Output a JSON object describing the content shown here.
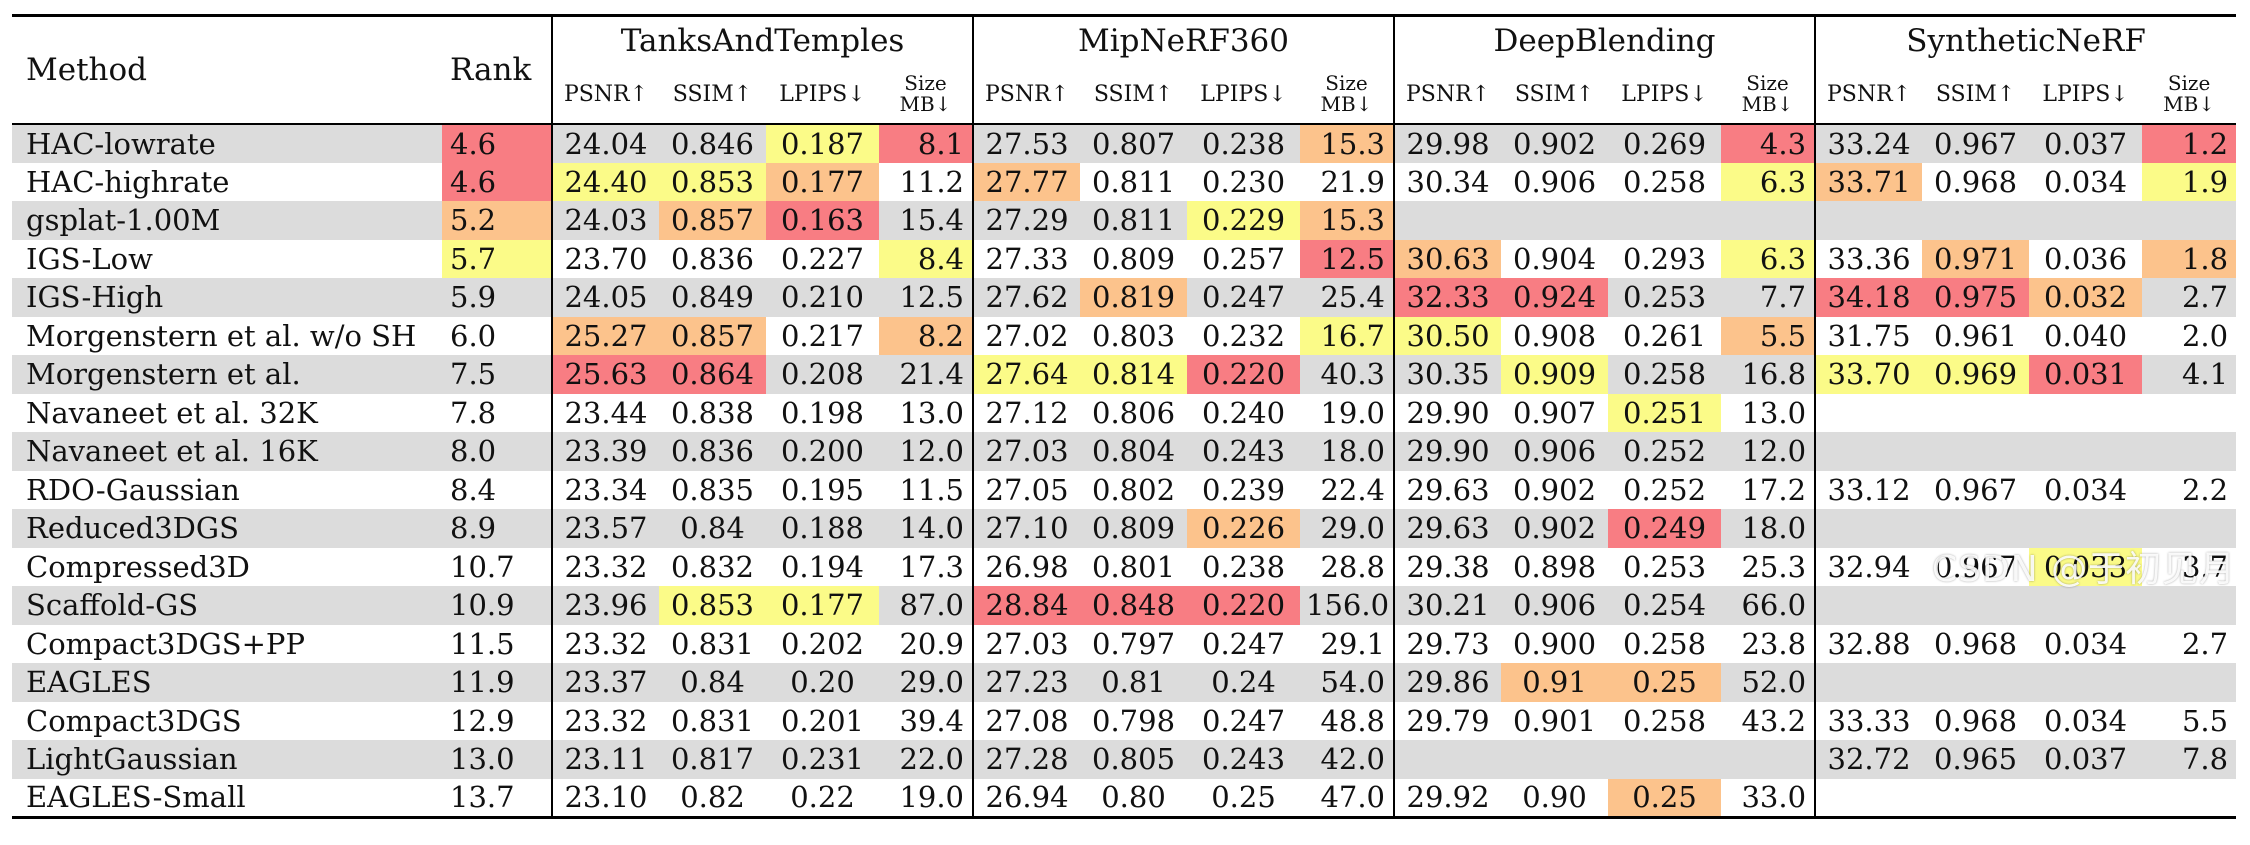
{
  "columns": {
    "method": "Method",
    "rank": "Rank",
    "groups": [
      "TanksAndTemples",
      "MipNeRF360",
      "DeepBlending",
      "SyntheticNeRF"
    ],
    "metrics": [
      "PSNR↑",
      "SSIM↑",
      "LPIPS↓"
    ],
    "size_top": "Size",
    "size_bottom": "MB↓"
  },
  "highlight_colors": {
    "red": "#f87d83",
    "orange": "#fcc38c",
    "yellow": "#fbfb88",
    "shaded": "#dcdcdc"
  },
  "rows": [
    {
      "method": "HAC-lowrate",
      "rank": "4.6",
      "rank_hl": "red",
      "shaded": true,
      "tt": [
        "24.04",
        "0.846",
        "0.187",
        "8.1"
      ],
      "tt_hl": [
        "",
        "",
        "yellow",
        "red"
      ],
      "mip": [
        "27.53",
        "0.807",
        "0.238",
        "15.3"
      ],
      "mip_hl": [
        "",
        "",
        "",
        "orange"
      ],
      "db": [
        "29.98",
        "0.902",
        "0.269",
        "4.3"
      ],
      "db_hl": [
        "",
        "",
        "",
        "red"
      ],
      "syn": [
        "33.24",
        "0.967",
        "0.037",
        "1.2"
      ],
      "syn_hl": [
        "",
        "",
        "",
        "red"
      ]
    },
    {
      "method": "HAC-highrate",
      "rank": "4.6",
      "rank_hl": "red",
      "shaded": false,
      "tt": [
        "24.40",
        "0.853",
        "0.177",
        "11.2"
      ],
      "tt_hl": [
        "yellow",
        "yellow",
        "orange",
        ""
      ],
      "mip": [
        "27.77",
        "0.811",
        "0.230",
        "21.9"
      ],
      "mip_hl": [
        "orange",
        "",
        "",
        ""
      ],
      "db": [
        "30.34",
        "0.906",
        "0.258",
        "6.3"
      ],
      "db_hl": [
        "",
        "",
        "",
        "yellow"
      ],
      "syn": [
        "33.71",
        "0.968",
        "0.034",
        "1.9"
      ],
      "syn_hl": [
        "orange",
        "",
        "",
        "yellow"
      ]
    },
    {
      "method": "gsplat-1.00M",
      "rank": "5.2",
      "rank_hl": "orange",
      "shaded": true,
      "tt": [
        "24.03",
        "0.857",
        "0.163",
        "15.4"
      ],
      "tt_hl": [
        "",
        "orange",
        "red",
        ""
      ],
      "mip": [
        "27.29",
        "0.811",
        "0.229",
        "15.3"
      ],
      "mip_hl": [
        "",
        "",
        "yellow",
        "orange"
      ],
      "db": [
        "",
        "",
        "",
        ""
      ],
      "db_hl": [
        "",
        "",
        "",
        ""
      ],
      "syn": [
        "",
        "",
        "",
        ""
      ],
      "syn_hl": [
        "",
        "",
        "",
        ""
      ]
    },
    {
      "method": "IGS-Low",
      "rank": "5.7",
      "rank_hl": "yellow",
      "shaded": false,
      "tt": [
        "23.70",
        "0.836",
        "0.227",
        "8.4"
      ],
      "tt_hl": [
        "",
        "",
        "",
        "yellow"
      ],
      "mip": [
        "27.33",
        "0.809",
        "0.257",
        "12.5"
      ],
      "mip_hl": [
        "",
        "",
        "",
        "red"
      ],
      "db": [
        "30.63",
        "0.904",
        "0.293",
        "6.3"
      ],
      "db_hl": [
        "orange",
        "",
        "",
        "yellow"
      ],
      "syn": [
        "33.36",
        "0.971",
        "0.036",
        "1.8"
      ],
      "syn_hl": [
        "",
        "orange",
        "",
        "orange"
      ]
    },
    {
      "method": "IGS-High",
      "rank": "5.9",
      "rank_hl": "",
      "shaded": true,
      "tt": [
        "24.05",
        "0.849",
        "0.210",
        "12.5"
      ],
      "tt_hl": [
        "",
        "",
        "",
        ""
      ],
      "mip": [
        "27.62",
        "0.819",
        "0.247",
        "25.4"
      ],
      "mip_hl": [
        "",
        "orange",
        "",
        ""
      ],
      "db": [
        "32.33",
        "0.924",
        "0.253",
        "7.7"
      ],
      "db_hl": [
        "red",
        "red",
        "",
        ""
      ],
      "syn": [
        "34.18",
        "0.975",
        "0.032",
        "2.7"
      ],
      "syn_hl": [
        "red",
        "red",
        "orange",
        ""
      ]
    },
    {
      "method": "Morgenstern et al. w/o SH",
      "rank": "6.0",
      "rank_hl": "",
      "shaded": false,
      "tt": [
        "25.27",
        "0.857",
        "0.217",
        "8.2"
      ],
      "tt_hl": [
        "orange",
        "orange",
        "",
        "orange"
      ],
      "mip": [
        "27.02",
        "0.803",
        "0.232",
        "16.7"
      ],
      "mip_hl": [
        "",
        "",
        "",
        "yellow"
      ],
      "db": [
        "30.50",
        "0.908",
        "0.261",
        "5.5"
      ],
      "db_hl": [
        "yellow",
        "",
        "",
        "orange"
      ],
      "syn": [
        "31.75",
        "0.961",
        "0.040",
        "2.0"
      ],
      "syn_hl": [
        "",
        "",
        "",
        ""
      ]
    },
    {
      "method": "Morgenstern et al.",
      "rank": "7.5",
      "rank_hl": "",
      "shaded": true,
      "tt": [
        "25.63",
        "0.864",
        "0.208",
        "21.4"
      ],
      "tt_hl": [
        "red",
        "red",
        "",
        ""
      ],
      "mip": [
        "27.64",
        "0.814",
        "0.220",
        "40.3"
      ],
      "mip_hl": [
        "yellow",
        "yellow",
        "red",
        ""
      ],
      "db": [
        "30.35",
        "0.909",
        "0.258",
        "16.8"
      ],
      "db_hl": [
        "",
        "yellow",
        "",
        ""
      ],
      "syn": [
        "33.70",
        "0.969",
        "0.031",
        "4.1"
      ],
      "syn_hl": [
        "yellow",
        "yellow",
        "red",
        ""
      ]
    },
    {
      "method": "Navaneet et al. 32K",
      "rank": "7.8",
      "rank_hl": "",
      "shaded": false,
      "tt": [
        "23.44",
        "0.838",
        "0.198",
        "13.0"
      ],
      "tt_hl": [
        "",
        "",
        "",
        ""
      ],
      "mip": [
        "27.12",
        "0.806",
        "0.240",
        "19.0"
      ],
      "mip_hl": [
        "",
        "",
        "",
        ""
      ],
      "db": [
        "29.90",
        "0.907",
        "0.251",
        "13.0"
      ],
      "db_hl": [
        "",
        "",
        "yellow",
        ""
      ],
      "syn": [
        "",
        "",
        "",
        ""
      ],
      "syn_hl": [
        "",
        "",
        "",
        ""
      ]
    },
    {
      "method": "Navaneet et al. 16K",
      "rank": "8.0",
      "rank_hl": "",
      "shaded": true,
      "tt": [
        "23.39",
        "0.836",
        "0.200",
        "12.0"
      ],
      "tt_hl": [
        "",
        "",
        "",
        ""
      ],
      "mip": [
        "27.03",
        "0.804",
        "0.243",
        "18.0"
      ],
      "mip_hl": [
        "",
        "",
        "",
        ""
      ],
      "db": [
        "29.90",
        "0.906",
        "0.252",
        "12.0"
      ],
      "db_hl": [
        "",
        "",
        "",
        ""
      ],
      "syn": [
        "",
        "",
        "",
        ""
      ],
      "syn_hl": [
        "",
        "",
        "",
        ""
      ]
    },
    {
      "method": "RDO-Gaussian",
      "rank": "8.4",
      "rank_hl": "",
      "shaded": false,
      "tt": [
        "23.34",
        "0.835",
        "0.195",
        "11.5"
      ],
      "tt_hl": [
        "",
        "",
        "",
        ""
      ],
      "mip": [
        "27.05",
        "0.802",
        "0.239",
        "22.4"
      ],
      "mip_hl": [
        "",
        "",
        "",
        ""
      ],
      "db": [
        "29.63",
        "0.902",
        "0.252",
        "17.2"
      ],
      "db_hl": [
        "",
        "",
        "",
        ""
      ],
      "syn": [
        "33.12",
        "0.967",
        "0.034",
        "2.2"
      ],
      "syn_hl": [
        "",
        "",
        "",
        ""
      ]
    },
    {
      "method": "Reduced3DGS",
      "rank": "8.9",
      "rank_hl": "",
      "shaded": true,
      "tt": [
        "23.57",
        "0.84",
        "0.188",
        "14.0"
      ],
      "tt_hl": [
        "",
        "",
        "",
        ""
      ],
      "mip": [
        "27.10",
        "0.809",
        "0.226",
        "29.0"
      ],
      "mip_hl": [
        "",
        "",
        "orange",
        ""
      ],
      "db": [
        "29.63",
        "0.902",
        "0.249",
        "18.0"
      ],
      "db_hl": [
        "",
        "",
        "red",
        ""
      ],
      "syn": [
        "",
        "",
        "",
        ""
      ],
      "syn_hl": [
        "",
        "",
        "",
        ""
      ]
    },
    {
      "method": "Compressed3D",
      "rank": "10.7",
      "rank_hl": "",
      "shaded": false,
      "tt": [
        "23.32",
        "0.832",
        "0.194",
        "17.3"
      ],
      "tt_hl": [
        "",
        "",
        "",
        ""
      ],
      "mip": [
        "26.98",
        "0.801",
        "0.238",
        "28.8"
      ],
      "mip_hl": [
        "",
        "",
        "",
        ""
      ],
      "db": [
        "29.38",
        "0.898",
        "0.253",
        "25.3"
      ],
      "db_hl": [
        "",
        "",
        "",
        ""
      ],
      "syn": [
        "32.94",
        "0.967",
        "0.033",
        "3.7"
      ],
      "syn_hl": [
        "",
        "",
        "yellow",
        ""
      ]
    },
    {
      "method": "Scaffold-GS",
      "rank": "10.9",
      "rank_hl": "",
      "shaded": true,
      "tt": [
        "23.96",
        "0.853",
        "0.177",
        "87.0"
      ],
      "tt_hl": [
        "",
        "yellow",
        "yellow",
        ""
      ],
      "mip": [
        "28.84",
        "0.848",
        "0.220",
        "156.0"
      ],
      "mip_hl": [
        "red",
        "red",
        "red",
        ""
      ],
      "db": [
        "30.21",
        "0.906",
        "0.254",
        "66.0"
      ],
      "db_hl": [
        "",
        "",
        "",
        ""
      ],
      "syn": [
        "",
        "",
        "",
        ""
      ],
      "syn_hl": [
        "",
        "",
        "",
        ""
      ]
    },
    {
      "method": "Compact3DGS+PP",
      "rank": "11.5",
      "rank_hl": "",
      "shaded": false,
      "tt": [
        "23.32",
        "0.831",
        "0.202",
        "20.9"
      ],
      "tt_hl": [
        "",
        "",
        "",
        ""
      ],
      "mip": [
        "27.03",
        "0.797",
        "0.247",
        "29.1"
      ],
      "mip_hl": [
        "",
        "",
        "",
        ""
      ],
      "db": [
        "29.73",
        "0.900",
        "0.258",
        "23.8"
      ],
      "db_hl": [
        "",
        "",
        "",
        ""
      ],
      "syn": [
        "32.88",
        "0.968",
        "0.034",
        "2.7"
      ],
      "syn_hl": [
        "",
        "",
        "",
        ""
      ]
    },
    {
      "method": "EAGLES",
      "rank": "11.9",
      "rank_hl": "",
      "shaded": true,
      "tt": [
        "23.37",
        "0.84",
        "0.20",
        "29.0"
      ],
      "tt_hl": [
        "",
        "",
        "",
        ""
      ],
      "mip": [
        "27.23",
        "0.81",
        "0.24",
        "54.0"
      ],
      "mip_hl": [
        "",
        "",
        "",
        ""
      ],
      "db": [
        "29.86",
        "0.91",
        "0.25",
        "52.0"
      ],
      "db_hl": [
        "",
        "orange",
        "orange",
        ""
      ],
      "syn": [
        "",
        "",
        "",
        ""
      ],
      "syn_hl": [
        "",
        "",
        "",
        ""
      ]
    },
    {
      "method": "Compact3DGS",
      "rank": "12.9",
      "rank_hl": "",
      "shaded": false,
      "tt": [
        "23.32",
        "0.831",
        "0.201",
        "39.4"
      ],
      "tt_hl": [
        "",
        "",
        "",
        ""
      ],
      "mip": [
        "27.08",
        "0.798",
        "0.247",
        "48.8"
      ],
      "mip_hl": [
        "",
        "",
        "",
        ""
      ],
      "db": [
        "29.79",
        "0.901",
        "0.258",
        "43.2"
      ],
      "db_hl": [
        "",
        "",
        "",
        ""
      ],
      "syn": [
        "33.33",
        "0.968",
        "0.034",
        "5.5"
      ],
      "syn_hl": [
        "",
        "",
        "",
        ""
      ]
    },
    {
      "method": "LightGaussian",
      "rank": "13.0",
      "rank_hl": "",
      "shaded": true,
      "tt": [
        "23.11",
        "0.817",
        "0.231",
        "22.0"
      ],
      "tt_hl": [
        "",
        "",
        "",
        ""
      ],
      "mip": [
        "27.28",
        "0.805",
        "0.243",
        "42.0"
      ],
      "mip_hl": [
        "",
        "",
        "",
        ""
      ],
      "db": [
        "",
        "",
        "",
        ""
      ],
      "db_hl": [
        "",
        "",
        "",
        ""
      ],
      "syn": [
        "32.72",
        "0.965",
        "0.037",
        "7.8"
      ],
      "syn_hl": [
        "",
        "",
        "",
        ""
      ]
    },
    {
      "method": "EAGLES-Small",
      "rank": "13.7",
      "rank_hl": "",
      "shaded": false,
      "tt": [
        "23.10",
        "0.82",
        "0.22",
        "19.0"
      ],
      "tt_hl": [
        "",
        "",
        "",
        ""
      ],
      "mip": [
        "26.94",
        "0.80",
        "0.25",
        "47.0"
      ],
      "mip_hl": [
        "",
        "",
        "",
        ""
      ],
      "db": [
        "29.92",
        "0.90",
        "0.25",
        "33.0"
      ],
      "db_hl": [
        "",
        "",
        "orange",
        ""
      ],
      "syn": [
        "",
        "",
        "",
        ""
      ],
      "syn_hl": [
        "",
        "",
        "",
        ""
      ]
    }
  ],
  "watermark": "CSDN @于初见月"
}
